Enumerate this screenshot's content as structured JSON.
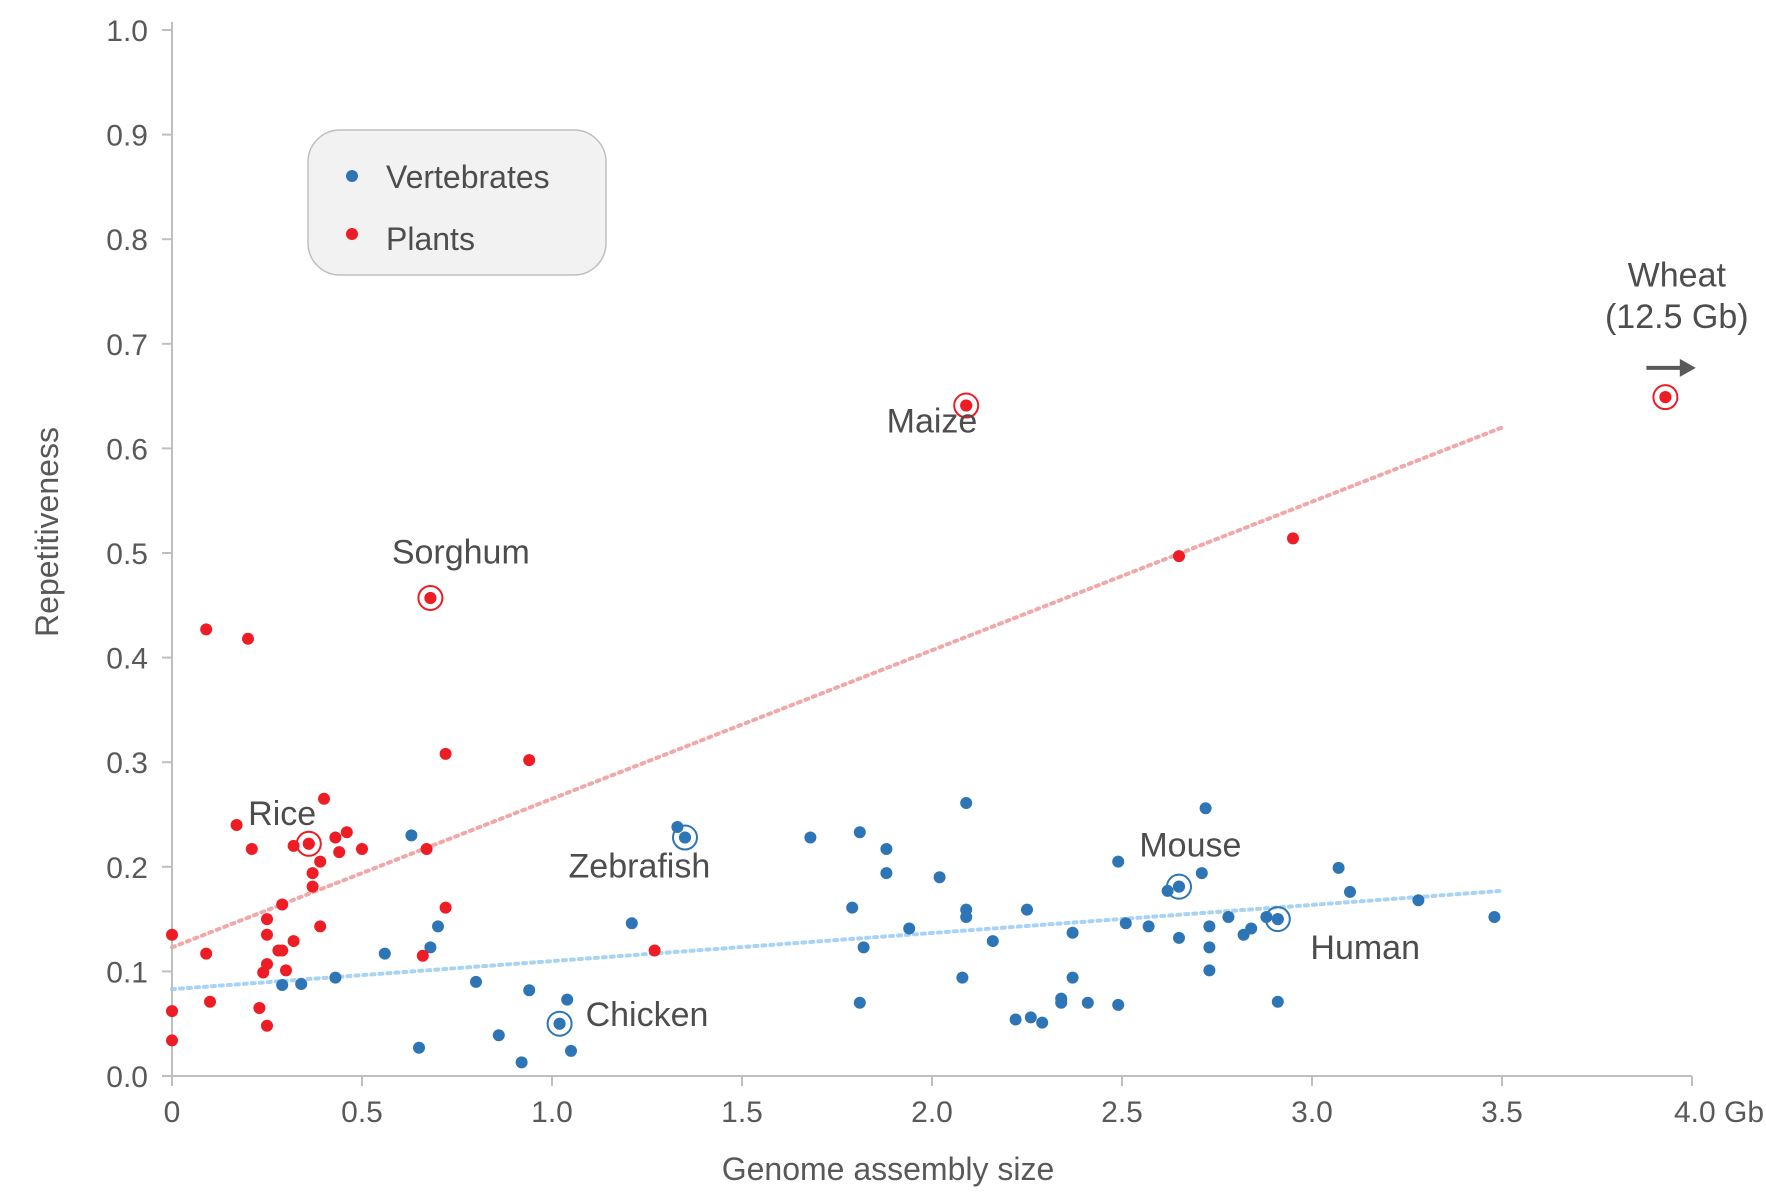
{
  "chart_data": {
    "type": "scatter",
    "title": "",
    "xlabel": "Genome assembly size",
    "ylabel": "Repetitiveness",
    "xlim": [
      0,
      4.0
    ],
    "ylim": [
      0,
      1.0
    ],
    "x_ticks": [
      "0",
      "0.5",
      "1.0",
      "1.5",
      "2.0",
      "2.5",
      "3.0",
      "3.5",
      "4.0 Gb"
    ],
    "y_ticks": [
      "0.0",
      "0.1",
      "0.2",
      "0.3",
      "0.4",
      "0.5",
      "0.6",
      "0.7",
      "0.8",
      "0.9",
      "1.0"
    ],
    "grid": false,
    "legend": {
      "position": "top-left",
      "entries": [
        {
          "name": "Vertebrates",
          "color": "#2e75b6"
        },
        {
          "name": "Plants",
          "color": "#ee1c24"
        }
      ]
    },
    "series": [
      {
        "name": "Vertebrates",
        "color": "#2e75b6",
        "trendline": {
          "from": [
            0,
            0.083
          ],
          "to": [
            3.5,
            0.177
          ],
          "color": "#a9d3f5"
        },
        "points": [
          [
            0.29,
            0.087
          ],
          [
            0.34,
            0.088
          ],
          [
            0.43,
            0.094
          ],
          [
            0.56,
            0.117
          ],
          [
            0.63,
            0.23
          ],
          [
            0.65,
            0.027
          ],
          [
            0.68,
            0.123
          ],
          [
            0.7,
            0.143
          ],
          [
            0.8,
            0.09
          ],
          [
            0.86,
            0.039
          ],
          [
            0.92,
            0.013
          ],
          [
            0.94,
            0.082
          ],
          [
            1.02,
            0.05
          ],
          [
            1.04,
            0.073
          ],
          [
            1.05,
            0.024
          ],
          [
            1.21,
            0.146
          ],
          [
            1.33,
            0.238
          ],
          [
            1.35,
            0.228
          ],
          [
            1.68,
            0.228
          ],
          [
            1.79,
            0.161
          ],
          [
            1.81,
            0.233
          ],
          [
            1.81,
            0.07
          ],
          [
            1.82,
            0.123
          ],
          [
            1.88,
            0.217
          ],
          [
            1.88,
            0.194
          ],
          [
            1.94,
            0.141
          ],
          [
            2.02,
            0.19
          ],
          [
            2.08,
            0.094
          ],
          [
            2.09,
            0.261
          ],
          [
            2.09,
            0.159
          ],
          [
            2.09,
            0.152
          ],
          [
            2.16,
            0.129
          ],
          [
            2.22,
            0.054
          ],
          [
            2.25,
            0.159
          ],
          [
            2.26,
            0.056
          ],
          [
            2.29,
            0.051
          ],
          [
            2.34,
            0.074
          ],
          [
            2.34,
            0.07
          ],
          [
            2.37,
            0.094
          ],
          [
            2.37,
            0.137
          ],
          [
            2.41,
            0.07
          ],
          [
            2.49,
            0.205
          ],
          [
            2.49,
            0.068
          ],
          [
            2.51,
            0.146
          ],
          [
            2.57,
            0.143
          ],
          [
            2.62,
            0.177
          ],
          [
            2.65,
            0.181
          ],
          [
            2.65,
            0.132
          ],
          [
            2.71,
            0.194
          ],
          [
            2.72,
            0.256
          ],
          [
            2.73,
            0.143
          ],
          [
            2.73,
            0.123
          ],
          [
            2.73,
            0.101
          ],
          [
            2.78,
            0.152
          ],
          [
            2.82,
            0.135
          ],
          [
            2.84,
            0.141
          ],
          [
            2.88,
            0.152
          ],
          [
            2.91,
            0.15
          ],
          [
            2.91,
            0.071
          ],
          [
            3.07,
            0.199
          ],
          [
            3.1,
            0.176
          ],
          [
            3.28,
            0.168
          ],
          [
            3.48,
            0.152
          ]
        ],
        "highlighted": [
          {
            "label": "Chicken",
            "x": 1.02,
            "y": 0.05
          },
          {
            "label": "Zebrafish",
            "x": 1.35,
            "y": 0.228
          },
          {
            "label": "Mouse",
            "x": 2.65,
            "y": 0.181
          },
          {
            "label": "Human",
            "x": 2.91,
            "y": 0.15
          }
        ]
      },
      {
        "name": "Plants",
        "color": "#ee1c24",
        "trendline": {
          "from": [
            0,
            0.123
          ],
          "to": [
            3.5,
            0.62
          ],
          "color": "#f0a8a8"
        },
        "points": [
          [
            0.0,
            0.135
          ],
          [
            0.0,
            0.062
          ],
          [
            0.0,
            0.034
          ],
          [
            0.09,
            0.427
          ],
          [
            0.09,
            0.117
          ],
          [
            0.1,
            0.071
          ],
          [
            0.17,
            0.24
          ],
          [
            0.2,
            0.418
          ],
          [
            0.21,
            0.217
          ],
          [
            0.23,
            0.065
          ],
          [
            0.24,
            0.099
          ],
          [
            0.25,
            0.15
          ],
          [
            0.25,
            0.135
          ],
          [
            0.25,
            0.107
          ],
          [
            0.25,
            0.048
          ],
          [
            0.28,
            0.12
          ],
          [
            0.29,
            0.164
          ],
          [
            0.29,
            0.12
          ],
          [
            0.3,
            0.101
          ],
          [
            0.32,
            0.22
          ],
          [
            0.32,
            0.129
          ],
          [
            0.36,
            0.222
          ],
          [
            0.37,
            0.194
          ],
          [
            0.37,
            0.181
          ],
          [
            0.39,
            0.205
          ],
          [
            0.39,
            0.143
          ],
          [
            0.4,
            0.265
          ],
          [
            0.43,
            0.228
          ],
          [
            0.44,
            0.214
          ],
          [
            0.46,
            0.233
          ],
          [
            0.5,
            0.217
          ],
          [
            0.66,
            0.115
          ],
          [
            0.67,
            0.217
          ],
          [
            0.68,
            0.457
          ],
          [
            0.72,
            0.308
          ],
          [
            0.72,
            0.161
          ],
          [
            0.94,
            0.302
          ],
          [
            1.27,
            0.12
          ],
          [
            2.09,
            0.641
          ],
          [
            2.65,
            0.497
          ],
          [
            2.95,
            0.514
          ],
          [
            3.93,
            0.649
          ]
        ],
        "highlighted": [
          {
            "label": "Rice",
            "x": 0.36,
            "y": 0.222
          },
          {
            "label": "Sorghum",
            "x": 0.68,
            "y": 0.457
          },
          {
            "label": "Maize",
            "x": 2.09,
            "y": 0.641
          },
          {
            "label": "Wheat",
            "x": 3.93,
            "y": 0.649
          }
        ]
      }
    ],
    "annotations": [
      {
        "text": "Rice",
        "x": 0.29,
        "y": 0.24
      },
      {
        "text": "Sorghum",
        "x": 0.76,
        "y": 0.49
      },
      {
        "text": "Maize",
        "x": 2.0,
        "y": 0.615
      },
      {
        "text": "Zebrafish",
        "x": 1.23,
        "y": 0.19
      },
      {
        "text": "Chicken",
        "x": 1.25,
        "y": 0.048
      },
      {
        "text": "Mouse",
        "x": 2.68,
        "y": 0.21
      },
      {
        "text": "Human",
        "x": 3.14,
        "y": 0.112
      },
      {
        "text": "Wheat",
        "x": 3.96,
        "y": 0.755
      },
      {
        "text": "(12.5 Gb)",
        "x": 3.96,
        "y": 0.715
      }
    ],
    "arrow": {
      "from": [
        3.88,
        0.677
      ],
      "to": [
        4.01,
        0.677
      ],
      "color": "#595959"
    }
  }
}
